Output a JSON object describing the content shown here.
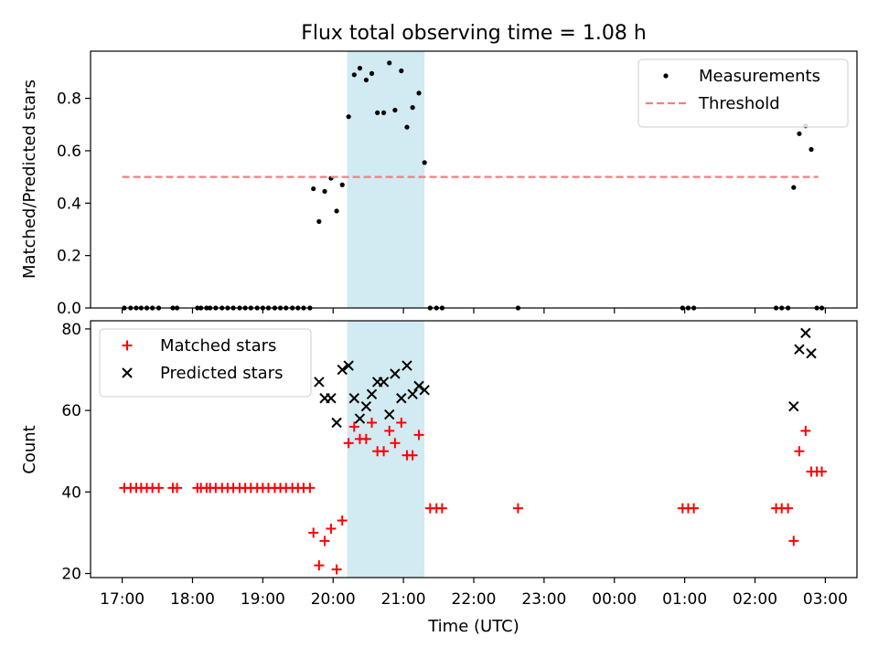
{
  "chart_data": {
    "title": "Flux total observing time = 1.08 h",
    "xlabel": "Time (UTC)",
    "x_tick_labels": [
      "17:00",
      "18:00",
      "19:00",
      "20:00",
      "21:00",
      "22:00",
      "23:00",
      "00:00",
      "01:00",
      "02:00",
      "03:00"
    ],
    "x_tick_hours": [
      0,
      1,
      2,
      3,
      4,
      5,
      6,
      7,
      8,
      9,
      10
    ],
    "x_range_hours_since_17": [
      -0.45,
      10.45
    ],
    "highlight_span_hours": [
      3.2,
      4.3
    ],
    "highlight_color": "#add8e6",
    "panels": [
      {
        "type": "scatter",
        "ylabel": "Matched/Predicted stars",
        "ylim": [
          0,
          0.98
        ],
        "yticks": [
          0.0,
          0.2,
          0.4,
          0.6,
          0.8
        ],
        "ytick_labels": [
          "0.0",
          "0.2",
          "0.4",
          "0.6",
          "0.8"
        ],
        "legend_position": "upper-right",
        "series": [
          {
            "name": "Measurements",
            "marker": "dot",
            "color": "#000000",
            "points": [
              [
                0.03,
                0
              ],
              [
                0.12,
                0
              ],
              [
                0.2,
                0
              ],
              [
                0.27,
                0
              ],
              [
                0.35,
                0
              ],
              [
                0.43,
                0
              ],
              [
                0.52,
                0
              ],
              [
                0.72,
                0
              ],
              [
                0.78,
                0
              ],
              [
                1.07,
                0
              ],
              [
                1.12,
                0
              ],
              [
                1.2,
                0
              ],
              [
                1.25,
                0
              ],
              [
                1.33,
                0
              ],
              [
                1.42,
                0
              ],
              [
                1.5,
                0
              ],
              [
                1.58,
                0
              ],
              [
                1.67,
                0
              ],
              [
                1.75,
                0
              ],
              [
                1.83,
                0
              ],
              [
                1.92,
                0
              ],
              [
                2.0,
                0
              ],
              [
                2.08,
                0
              ],
              [
                2.17,
                0
              ],
              [
                2.25,
                0
              ],
              [
                2.33,
                0
              ],
              [
                2.42,
                0
              ],
              [
                2.5,
                0
              ],
              [
                2.58,
                0
              ],
              [
                2.67,
                0
              ],
              [
                2.72,
                0.455
              ],
              [
                2.8,
                0.33
              ],
              [
                2.88,
                0.445
              ],
              [
                2.97,
                0.495
              ],
              [
                3.05,
                0.37
              ],
              [
                3.13,
                0.47
              ],
              [
                3.22,
                0.73
              ],
              [
                3.3,
                0.89
              ],
              [
                3.38,
                0.915
              ],
              [
                3.47,
                0.87
              ],
              [
                3.55,
                0.895
              ],
              [
                3.63,
                0.745
              ],
              [
                3.72,
                0.745
              ],
              [
                3.8,
                0.935
              ],
              [
                3.88,
                0.755
              ],
              [
                3.97,
                0.905
              ],
              [
                4.05,
                0.69
              ],
              [
                4.13,
                0.765
              ],
              [
                4.22,
                0.82
              ],
              [
                4.3,
                0.555
              ],
              [
                4.38,
                0
              ],
              [
                4.47,
                0
              ],
              [
                4.55,
                0
              ],
              [
                5.63,
                0
              ],
              [
                7.97,
                0
              ],
              [
                8.05,
                0
              ],
              [
                8.13,
                0
              ],
              [
                9.3,
                0
              ],
              [
                9.38,
                0
              ],
              [
                9.47,
                0
              ],
              [
                9.55,
                0.46
              ],
              [
                9.63,
                0.665
              ],
              [
                9.72,
                0.695
              ],
              [
                9.8,
                0.605
              ],
              [
                9.88,
                0
              ],
              [
                9.95,
                0
              ]
            ]
          },
          {
            "name": "Threshold",
            "style": "dashed",
            "color": "#f08080",
            "x": [
              0.0,
              9.9
            ],
            "y": [
              0.5,
              0.5
            ]
          }
        ]
      },
      {
        "type": "scatter",
        "ylabel": "Count",
        "ylim": [
          19,
          82
        ],
        "yticks": [
          20,
          40,
          60,
          80
        ],
        "ytick_labels": [
          "20",
          "40",
          "60",
          "80"
        ],
        "legend_position": "upper-left",
        "series": [
          {
            "name": "Matched stars",
            "marker": "plus",
            "color": "#ff0000",
            "points": [
              [
                0.03,
                41
              ],
              [
                0.12,
                41
              ],
              [
                0.2,
                41
              ],
              [
                0.27,
                41
              ],
              [
                0.35,
                41
              ],
              [
                0.43,
                41
              ],
              [
                0.52,
                41
              ],
              [
                0.72,
                41
              ],
              [
                0.78,
                41
              ],
              [
                1.07,
                41
              ],
              [
                1.12,
                41
              ],
              [
                1.2,
                41
              ],
              [
                1.25,
                41
              ],
              [
                1.33,
                41
              ],
              [
                1.42,
                41
              ],
              [
                1.5,
                41
              ],
              [
                1.58,
                41
              ],
              [
                1.67,
                41
              ],
              [
                1.75,
                41
              ],
              [
                1.83,
                41
              ],
              [
                1.92,
                41
              ],
              [
                2.0,
                41
              ],
              [
                2.08,
                41
              ],
              [
                2.17,
                41
              ],
              [
                2.25,
                41
              ],
              [
                2.33,
                41
              ],
              [
                2.42,
                41
              ],
              [
                2.5,
                41
              ],
              [
                2.58,
                41
              ],
              [
                2.67,
                41
              ],
              [
                2.72,
                30
              ],
              [
                2.8,
                22
              ],
              [
                2.88,
                28
              ],
              [
                2.97,
                31
              ],
              [
                3.05,
                21
              ],
              [
                3.13,
                33
              ],
              [
                3.22,
                52
              ],
              [
                3.3,
                56
              ],
              [
                3.38,
                53
              ],
              [
                3.47,
                53
              ],
              [
                3.55,
                57
              ],
              [
                3.63,
                50
              ],
              [
                3.72,
                50
              ],
              [
                3.8,
                55
              ],
              [
                3.88,
                52
              ],
              [
                3.97,
                57
              ],
              [
                4.05,
                49
              ],
              [
                4.13,
                49
              ],
              [
                4.22,
                54
              ],
              [
                4.38,
                36
              ],
              [
                4.47,
                36
              ],
              [
                4.55,
                36
              ],
              [
                5.63,
                36
              ],
              [
                7.97,
                36
              ],
              [
                8.05,
                36
              ],
              [
                8.13,
                36
              ],
              [
                9.3,
                36
              ],
              [
                9.38,
                36
              ],
              [
                9.47,
                36
              ],
              [
                9.55,
                28
              ],
              [
                9.63,
                50
              ],
              [
                9.72,
                55
              ],
              [
                9.8,
                45
              ],
              [
                9.88,
                45
              ],
              [
                9.95,
                45
              ]
            ]
          },
          {
            "name": "Predicted stars",
            "marker": "x",
            "color": "#000000",
            "points": [
              [
                2.8,
                67
              ],
              [
                2.88,
                63
              ],
              [
                2.97,
                63
              ],
              [
                3.05,
                57
              ],
              [
                3.13,
                70
              ],
              [
                3.22,
                71
              ],
              [
                3.3,
                63
              ],
              [
                3.38,
                58
              ],
              [
                3.47,
                61
              ],
              [
                3.55,
                64
              ],
              [
                3.63,
                67
              ],
              [
                3.72,
                67
              ],
              [
                3.8,
                59
              ],
              [
                3.88,
                69
              ],
              [
                3.97,
                63
              ],
              [
                4.05,
                71
              ],
              [
                4.13,
                64
              ],
              [
                4.22,
                66
              ],
              [
                4.3,
                65
              ],
              [
                9.55,
                61
              ],
              [
                9.63,
                75
              ],
              [
                9.72,
                79
              ],
              [
                9.8,
                74
              ]
            ]
          }
        ]
      }
    ]
  }
}
